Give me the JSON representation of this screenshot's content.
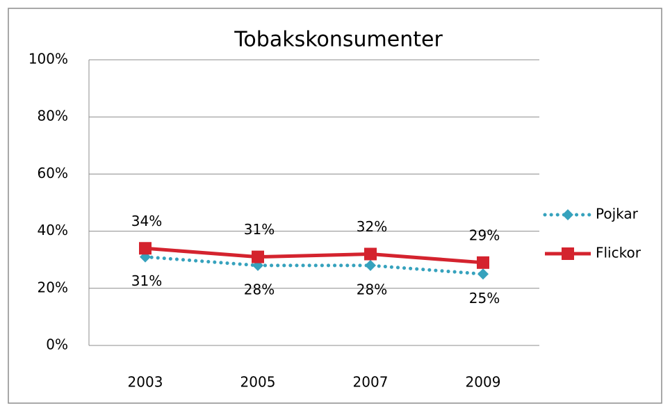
{
  "chart_data": {
    "type": "line",
    "title": "Tobakskonsumenter",
    "categories": [
      "2003",
      "2005",
      "2007",
      "2009"
    ],
    "series": [
      {
        "name": "Pojkar",
        "color": "#36a2bd",
        "marker": "diamond",
        "dash": "dotted",
        "values": [
          31,
          28,
          28,
          25
        ],
        "value_labels": [
          "31%",
          "28%",
          "28%",
          "25%"
        ]
      },
      {
        "name": "Flickor",
        "color": "#d4232e",
        "marker": "square",
        "dash": "solid",
        "values": [
          34,
          31,
          32,
          29
        ],
        "value_labels": [
          "34%",
          "31%",
          "32%",
          "29%"
        ]
      }
    ],
    "ylim": [
      0,
      100
    ],
    "yticks": [
      {
        "value": 0,
        "label": "0%"
      },
      {
        "value": 20,
        "label": "20%"
      },
      {
        "value": 40,
        "label": "40%"
      },
      {
        "value": 60,
        "label": "60%"
      },
      {
        "value": 80,
        "label": "80%"
      },
      {
        "value": 100,
        "label": "100%"
      }
    ],
    "grid": true,
    "legend": "right"
  }
}
